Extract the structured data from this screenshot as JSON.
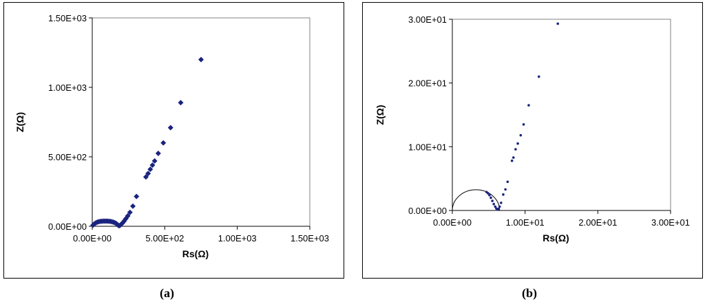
{
  "captions": {
    "a": "(a)",
    "b": "(b)"
  },
  "colors": {
    "marker": "#1a237e",
    "axis": "#000000",
    "arc": "#000000"
  },
  "chart_data": [
    {
      "id": "a",
      "type": "scatter",
      "title": "",
      "xlabel": "Rs(Ω)",
      "ylabel": "Z(Ω)",
      "xlim": [
        0,
        1500
      ],
      "ylim": [
        0,
        1500
      ],
      "xticks": [
        0,
        500,
        1000,
        1500
      ],
      "yticks": [
        0,
        500,
        1000,
        1500
      ],
      "xtick_labels": [
        "0.00E+00",
        "5.00E+02",
        "1.00E+03",
        "1.50E+03"
      ],
      "ytick_labels": [
        "0.00E+00",
        "5.00E+02",
        "1.00E+03",
        "1.50E+03"
      ],
      "grid": false,
      "series": [
        {
          "marker": "diamond",
          "points": [
            [
              5,
              8
            ],
            [
              15,
              18
            ],
            [
              25,
              25
            ],
            [
              35,
              30
            ],
            [
              45,
              33
            ],
            [
              55,
              35
            ],
            [
              65,
              36
            ],
            [
              75,
              37
            ],
            [
              85,
              37
            ],
            [
              95,
              37
            ],
            [
              105,
              37
            ],
            [
              115,
              36
            ],
            [
              125,
              35
            ],
            [
              135,
              33
            ],
            [
              145,
              30
            ],
            [
              155,
              26
            ],
            [
              165,
              20
            ],
            [
              172,
              14
            ],
            [
              178,
              8
            ],
            [
              185,
              4
            ],
            [
              192,
              7
            ],
            [
              200,
              15
            ],
            [
              210,
              25
            ],
            [
              220,
              38
            ],
            [
              232,
              55
            ],
            [
              245,
              75
            ],
            [
              260,
              100
            ],
            [
              280,
              145
            ],
            [
              305,
              215
            ],
            [
              370,
              355
            ],
            [
              385,
              380
            ],
            [
              400,
              410
            ],
            [
              415,
              440
            ],
            [
              430,
              470
            ],
            [
              455,
              525
            ],
            [
              490,
              600
            ],
            [
              540,
              710
            ],
            [
              610,
              890
            ],
            [
              750,
              1200
            ]
          ]
        }
      ]
    },
    {
      "id": "b",
      "type": "scatter",
      "title": "",
      "xlabel": "Rs(Ω)",
      "ylabel": "Z(Ω)",
      "xlim": [
        0,
        30
      ],
      "ylim": [
        0,
        30
      ],
      "xticks": [
        0,
        10,
        20,
        30
      ],
      "yticks": [
        0,
        10,
        20,
        30
      ],
      "xtick_labels": [
        "0.00E+00",
        "1.00E+01",
        "2.00E+01",
        "3.00E+01"
      ],
      "ytick_labels": [
        "0.00E+00",
        "1.00E+01",
        "2.00E+01",
        "3.00E+01"
      ],
      "grid": false,
      "fit_arc": {
        "center": [
          3.25,
          0
        ],
        "radius": 3.25
      },
      "series": [
        {
          "marker": "dot",
          "points": [
            [
              4.7,
              2.9
            ],
            [
              4.9,
              2.7
            ],
            [
              5.1,
              2.4
            ],
            [
              5.3,
              2.0
            ],
            [
              5.5,
              1.5
            ],
            [
              5.7,
              1.0
            ],
            [
              5.9,
              0.6
            ],
            [
              6.05,
              0.3
            ],
            [
              6.2,
              0.15
            ],
            [
              6.35,
              0.25
            ],
            [
              6.5,
              0.6
            ],
            [
              6.7,
              1.2
            ],
            [
              7.0,
              2.5
            ],
            [
              7.3,
              3.3
            ],
            [
              7.6,
              4.5
            ],
            [
              8.2,
              7.8
            ],
            [
              8.4,
              8.3
            ],
            [
              8.7,
              9.6
            ],
            [
              9.0,
              10.5
            ],
            [
              9.4,
              11.8
            ],
            [
              9.8,
              13.5
            ],
            [
              10.5,
              16.5
            ],
            [
              11.9,
              21.0
            ],
            [
              14.5,
              29.3
            ]
          ]
        }
      ]
    }
  ]
}
